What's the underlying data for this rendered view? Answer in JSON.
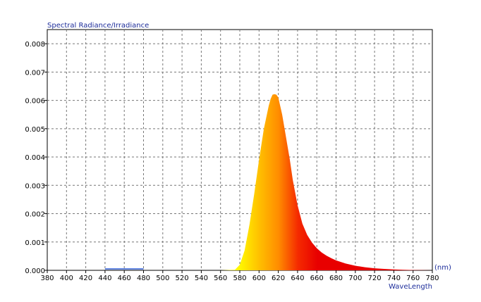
{
  "chart_data": {
    "type": "area",
    "title": "Spectral Radiance/Irradiance",
    "xlabel": "WaveLength",
    "xunit": "(nm)",
    "xlim": [
      380,
      780
    ],
    "ylim": [
      0,
      0.0085
    ],
    "x_ticks": [
      "380",
      "400",
      "420",
      "440",
      "460",
      "480",
      "500",
      "520",
      "540",
      "560",
      "580",
      "600",
      "620",
      "640",
      "660",
      "680",
      "700",
      "720",
      "740",
      "760",
      "780"
    ],
    "y_ticks": [
      "0.000",
      "0.001",
      "0.002",
      "0.003",
      "0.004",
      "0.005",
      "0.006",
      "0.007",
      "0.008"
    ],
    "grid": true,
    "series": [
      {
        "x": [
          440,
          460,
          480,
          560,
          575,
          580,
          585,
          590,
          595,
          600,
          605,
          610,
          612,
          614,
          616,
          618,
          620,
          622,
          624,
          626,
          628,
          630,
          632,
          635,
          640,
          645,
          650,
          655,
          660,
          665,
          670,
          675,
          680,
          690,
          700,
          710,
          720,
          730,
          740,
          750,
          760,
          770,
          780
        ],
        "y": [
          5e-05,
          5e-05,
          5e-05,
          0.0,
          2e-05,
          0.0002,
          0.0007,
          0.0016,
          0.0027,
          0.0039,
          0.005,
          0.0058,
          0.00605,
          0.0062,
          0.00622,
          0.0062,
          0.0061,
          0.0058,
          0.0055,
          0.0051,
          0.0047,
          0.0043,
          0.0039,
          0.0032,
          0.0023,
          0.00165,
          0.00125,
          0.00098,
          0.00078,
          0.00063,
          0.00052,
          0.00043,
          0.00035,
          0.00024,
          0.00016,
          0.00011,
          7e-05,
          5e-05,
          3e-05,
          2e-05,
          1e-05,
          5e-06,
          0.0
        ]
      }
    ]
  }
}
